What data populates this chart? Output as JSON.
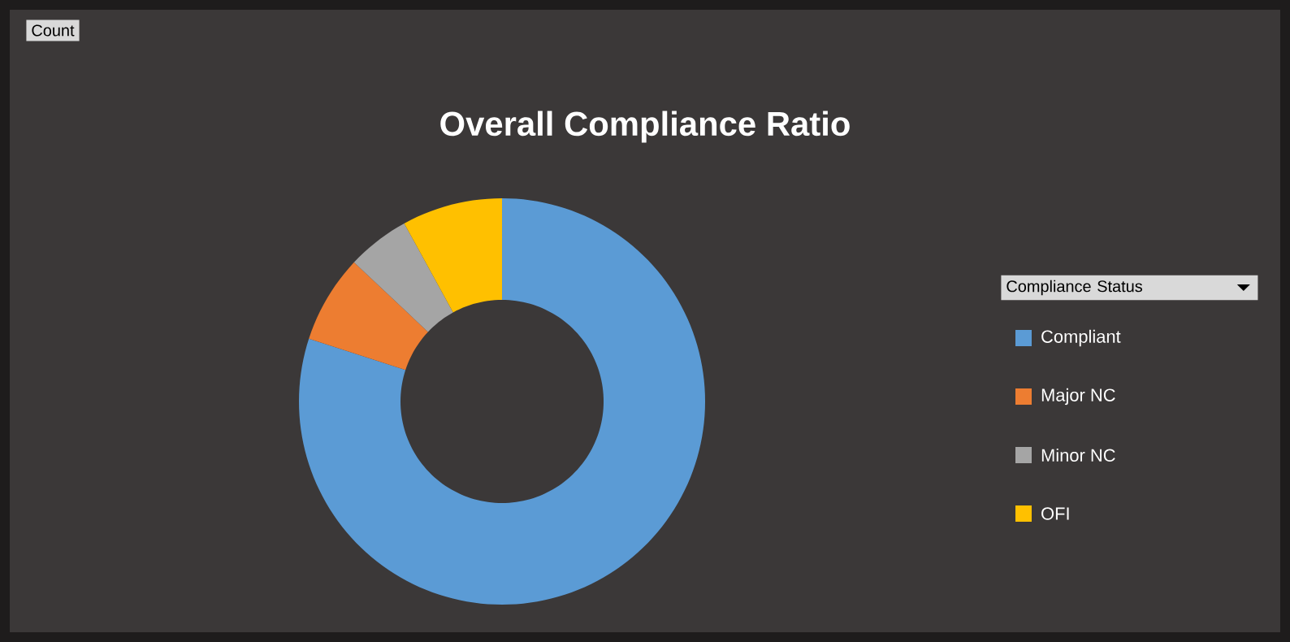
{
  "chart_data": {
    "type": "donut",
    "title": "Overall Compliance Ratio",
    "legend_title": "Compliance Status",
    "annotations": [
      "Count"
    ],
    "legend": "right",
    "categories": [
      "Compliant",
      "Major NC",
      "Minor NC",
      "OFI"
    ],
    "values": [
      80,
      7,
      5,
      8
    ],
    "colors": [
      "#5b9bd5",
      "#ed7d31",
      "#a5a5a5",
      "#ffc000"
    ]
  }
}
